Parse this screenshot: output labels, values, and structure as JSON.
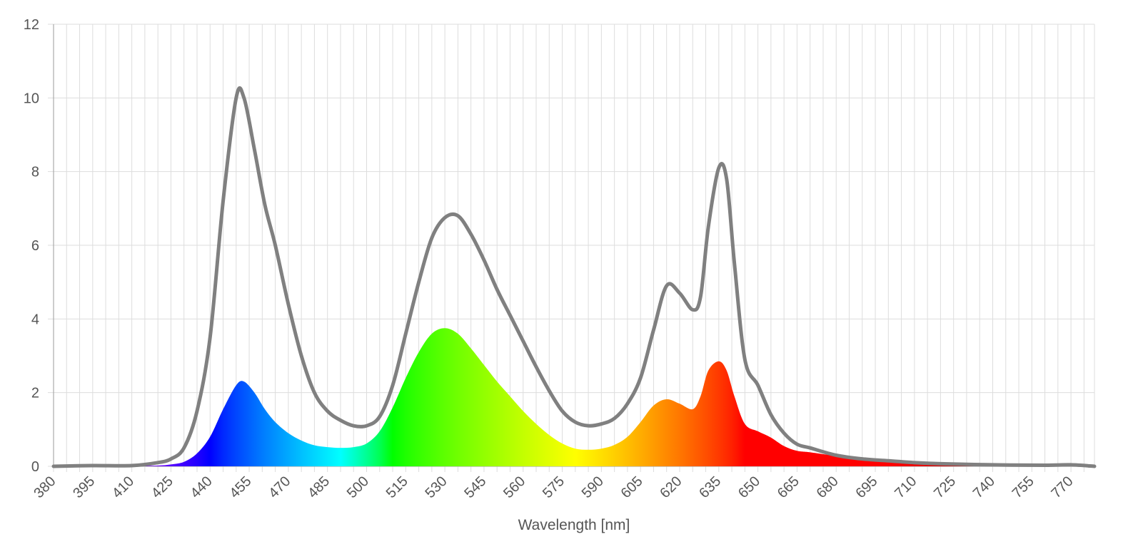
{
  "chart_data": {
    "type": "area",
    "title": "",
    "xlabel": "Wavelength [nm]",
    "ylabel": "",
    "xlim": [
      380,
      779
    ],
    "ylim": [
      0,
      12
    ],
    "grid": true,
    "legend": "none",
    "x_ticks": [
      "380",
      "395",
      "410",
      "425",
      "440",
      "455",
      "470",
      "485",
      "500",
      "515",
      "530",
      "545",
      "560",
      "575",
      "590",
      "605",
      "620",
      "635",
      "650",
      "665",
      "680",
      "695",
      "710",
      "725",
      "740",
      "755",
      "770"
    ],
    "y_ticks": [
      "0",
      "2",
      "4",
      "6",
      "8",
      "10",
      "12"
    ],
    "series": [
      {
        "style": "line",
        "color": "#808080",
        "points": [
          [
            380,
            0
          ],
          [
            395,
            0.02
          ],
          [
            410,
            0.02
          ],
          [
            420,
            0.1
          ],
          [
            425,
            0.2
          ],
          [
            430,
            0.5
          ],
          [
            435,
            1.5
          ],
          [
            440,
            3.5
          ],
          [
            445,
            7.2
          ],
          [
            450,
            10.0
          ],
          [
            453,
            10.0
          ],
          [
            457,
            8.6
          ],
          [
            461,
            7.1
          ],
          [
            465,
            6.0
          ],
          [
            470,
            4.4
          ],
          [
            475,
            3.0
          ],
          [
            480,
            2.0
          ],
          [
            485,
            1.5
          ],
          [
            490,
            1.25
          ],
          [
            495,
            1.1
          ],
          [
            500,
            1.1
          ],
          [
            505,
            1.35
          ],
          [
            510,
            2.2
          ],
          [
            515,
            3.6
          ],
          [
            520,
            5.0
          ],
          [
            525,
            6.2
          ],
          [
            530,
            6.75
          ],
          [
            535,
            6.8
          ],
          [
            540,
            6.3
          ],
          [
            545,
            5.6
          ],
          [
            550,
            4.8
          ],
          [
            555,
            4.1
          ],
          [
            560,
            3.4
          ],
          [
            565,
            2.7
          ],
          [
            570,
            2.05
          ],
          [
            575,
            1.5
          ],
          [
            580,
            1.2
          ],
          [
            585,
            1.1
          ],
          [
            590,
            1.15
          ],
          [
            595,
            1.3
          ],
          [
            600,
            1.7
          ],
          [
            605,
            2.4
          ],
          [
            610,
            3.7
          ],
          [
            615,
            4.9
          ],
          [
            620,
            4.7
          ],
          [
            625,
            4.25
          ],
          [
            628,
            4.6
          ],
          [
            631,
            6.5
          ],
          [
            635,
            8.1
          ],
          [
            638,
            7.8
          ],
          [
            641,
            5.5
          ],
          [
            645,
            2.9
          ],
          [
            650,
            2.2
          ],
          [
            655,
            1.4
          ],
          [
            660,
            0.9
          ],
          [
            665,
            0.6
          ],
          [
            670,
            0.5
          ],
          [
            680,
            0.3
          ],
          [
            690,
            0.2
          ],
          [
            700,
            0.15
          ],
          [
            710,
            0.1
          ],
          [
            720,
            0.07
          ],
          [
            740,
            0.04
          ],
          [
            760,
            0.03
          ],
          [
            770,
            0.04
          ],
          [
            779,
            0
          ]
        ]
      },
      {
        "style": "spectral-fill",
        "points": [
          [
            380,
            0
          ],
          [
            395,
            0.01
          ],
          [
            410,
            0.01
          ],
          [
            420,
            0.02
          ],
          [
            425,
            0.05
          ],
          [
            430,
            0.12
          ],
          [
            435,
            0.35
          ],
          [
            440,
            0.8
          ],
          [
            445,
            1.55
          ],
          [
            450,
            2.2
          ],
          [
            453,
            2.3
          ],
          [
            457,
            2.0
          ],
          [
            461,
            1.55
          ],
          [
            465,
            1.2
          ],
          [
            470,
            0.9
          ],
          [
            475,
            0.7
          ],
          [
            480,
            0.57
          ],
          [
            485,
            0.52
          ],
          [
            490,
            0.5
          ],
          [
            495,
            0.52
          ],
          [
            500,
            0.62
          ],
          [
            505,
            0.95
          ],
          [
            510,
            1.6
          ],
          [
            515,
            2.4
          ],
          [
            520,
            3.1
          ],
          [
            525,
            3.6
          ],
          [
            530,
            3.75
          ],
          [
            535,
            3.6
          ],
          [
            540,
            3.2
          ],
          [
            545,
            2.75
          ],
          [
            550,
            2.3
          ],
          [
            555,
            1.9
          ],
          [
            560,
            1.5
          ],
          [
            565,
            1.15
          ],
          [
            570,
            0.85
          ],
          [
            575,
            0.62
          ],
          [
            580,
            0.48
          ],
          [
            585,
            0.45
          ],
          [
            590,
            0.48
          ],
          [
            595,
            0.58
          ],
          [
            600,
            0.8
          ],
          [
            605,
            1.2
          ],
          [
            610,
            1.65
          ],
          [
            615,
            1.82
          ],
          [
            620,
            1.7
          ],
          [
            625,
            1.55
          ],
          [
            628,
            1.9
          ],
          [
            631,
            2.6
          ],
          [
            635,
            2.85
          ],
          [
            638,
            2.6
          ],
          [
            641,
            1.9
          ],
          [
            645,
            1.15
          ],
          [
            650,
            0.95
          ],
          [
            655,
            0.78
          ],
          [
            660,
            0.55
          ],
          [
            665,
            0.42
          ],
          [
            670,
            0.38
          ],
          [
            680,
            0.28
          ],
          [
            690,
            0.2
          ],
          [
            700,
            0.15
          ],
          [
            710,
            0.1
          ],
          [
            720,
            0.07
          ],
          [
            740,
            0.04
          ],
          [
            760,
            0.03
          ],
          [
            770,
            0.04
          ],
          [
            779,
            0
          ]
        ]
      }
    ]
  }
}
